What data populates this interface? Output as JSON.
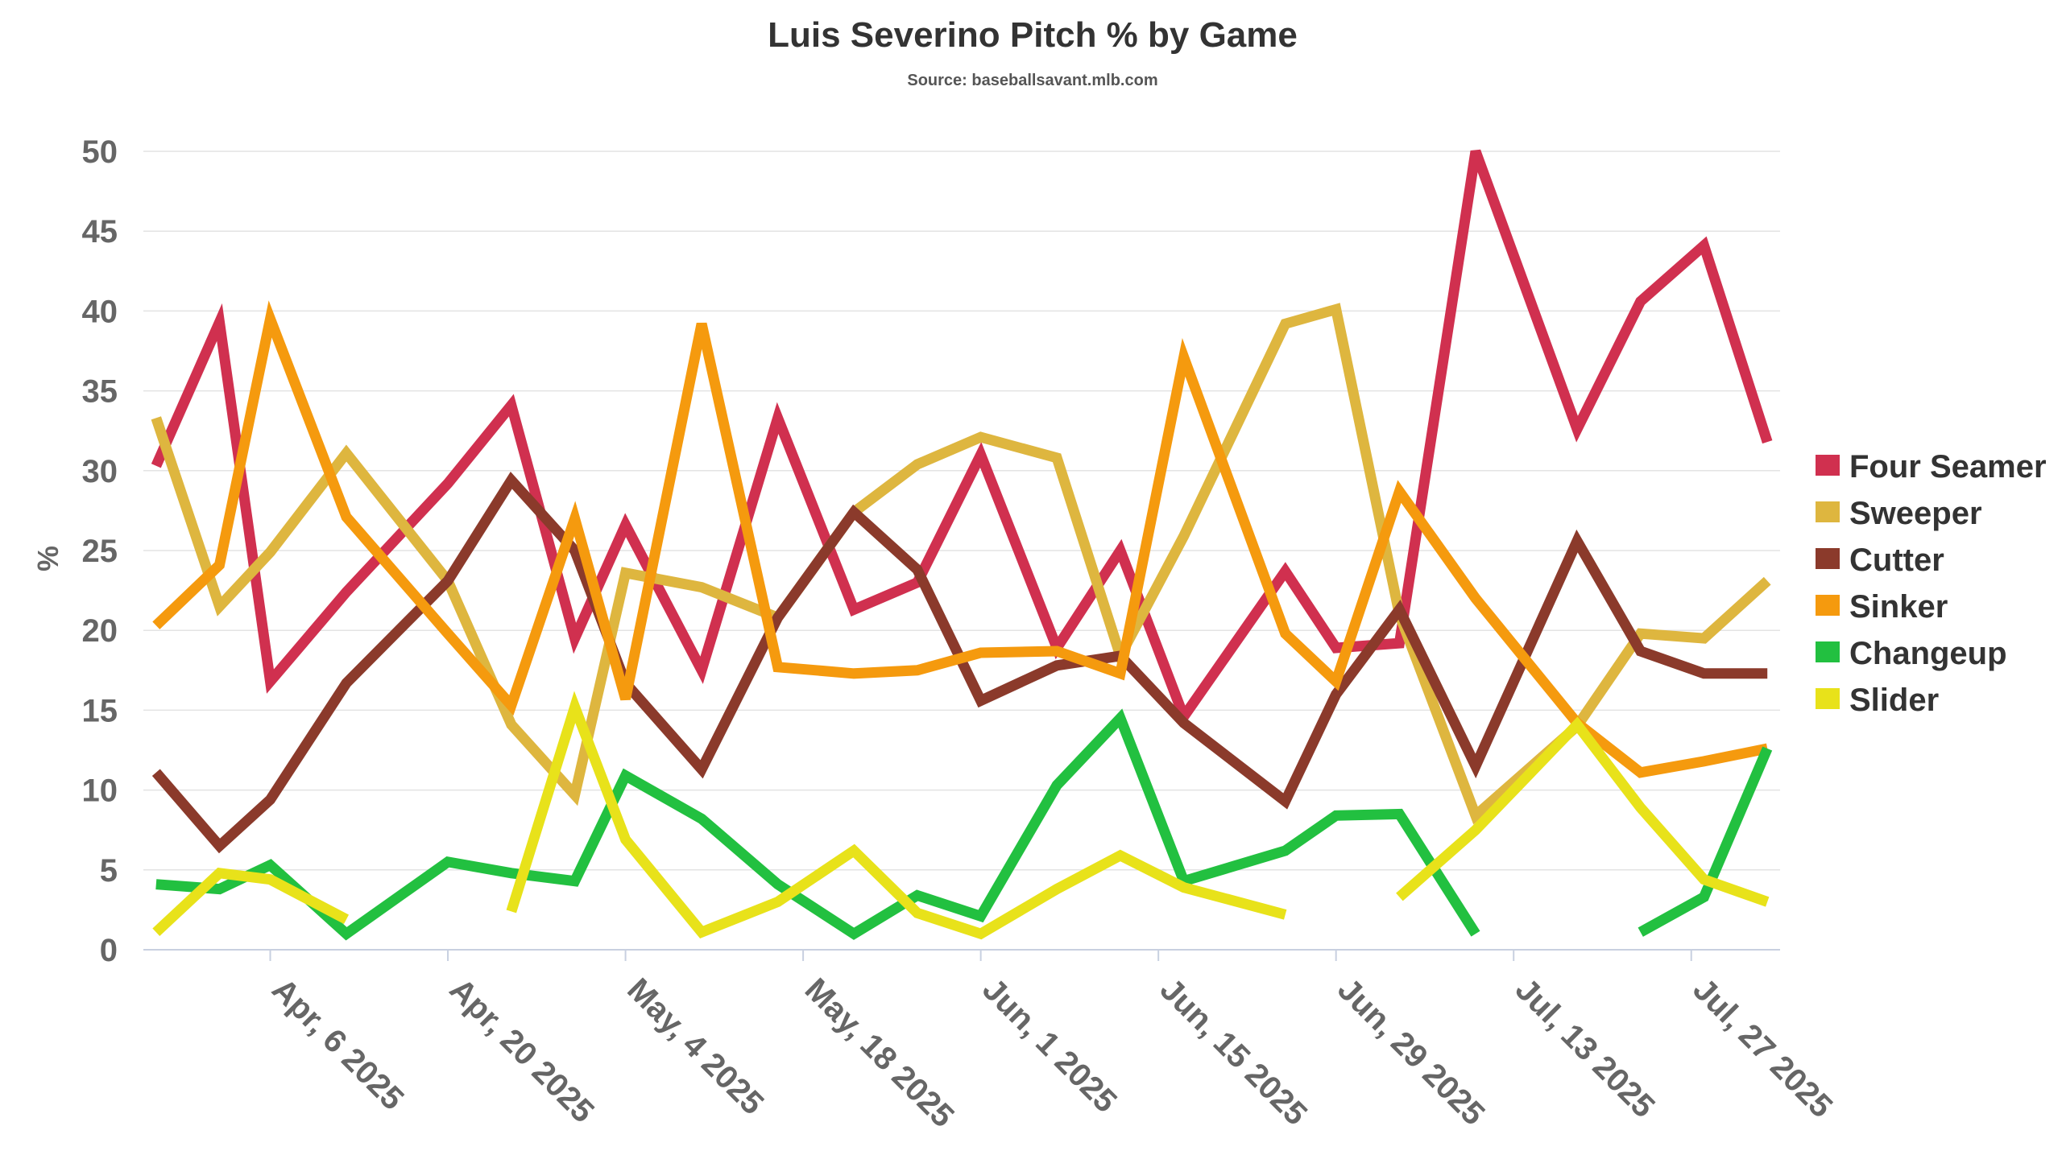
{
  "chart_data": {
    "type": "line",
    "title": "Luis Severino Pitch % by Game",
    "subtitle": "Source: baseballsavant.mlb.com",
    "ylabel": "%",
    "xlabel": "",
    "ylim": [
      0,
      50
    ],
    "yticks": [
      0,
      5,
      10,
      15,
      20,
      25,
      30,
      35,
      40,
      45,
      50
    ],
    "xlim": [
      "2025-03-27",
      "2025-08-03"
    ],
    "xticks": [
      {
        "date": "2025-04-06",
        "label": "Apr, 6 2025"
      },
      {
        "date": "2025-04-20",
        "label": "Apr, 20 2025"
      },
      {
        "date": "2025-05-04",
        "label": "May, 4 2025"
      },
      {
        "date": "2025-05-18",
        "label": "May, 18 2025"
      },
      {
        "date": "2025-06-01",
        "label": "Jun, 1 2025"
      },
      {
        "date": "2025-06-15",
        "label": "Jun, 15 2025"
      },
      {
        "date": "2025-06-29",
        "label": "Jun, 29 2025"
      },
      {
        "date": "2025-07-13",
        "label": "Jul, 13 2025"
      },
      {
        "date": "2025-07-27",
        "label": "Jul, 27 2025"
      }
    ],
    "grid": true,
    "legend_position": "right",
    "x": [
      "2025-03-28",
      "2025-04-02",
      "2025-04-06",
      "2025-04-12",
      "2025-04-20",
      "2025-04-25",
      "2025-04-30",
      "2025-05-04",
      "2025-05-10",
      "2025-05-16",
      "2025-05-22",
      "2025-05-27",
      "2025-06-01",
      "2025-06-07",
      "2025-06-12",
      "2025-06-17",
      "2025-06-25",
      "2025-06-29",
      "2025-07-04",
      "2025-07-10",
      "2025-07-18",
      "2025-07-23",
      "2025-07-28",
      "2025-08-02"
    ],
    "series": [
      {
        "name": "Four Seamer",
        "color": "#d0304f",
        "values": [
          30.3,
          39.3,
          16.8,
          22.4,
          29.2,
          34.1,
          19.5,
          26.6,
          17.5,
          33.3,
          21.3,
          23.0,
          31.0,
          18.9,
          25.0,
          14.6,
          23.7,
          18.9,
          19.2,
          50.0,
          32.6,
          40.6,
          44.1,
          31.8
        ]
      },
      {
        "name": "Sweeper",
        "color": "#deb63f",
        "values": [
          33.3,
          21.5,
          24.9,
          31.1,
          23.1,
          14.1,
          9.7,
          23.6,
          22.7,
          20.8,
          27.4,
          30.4,
          32.1,
          30.8,
          18.4,
          25.9,
          39.2,
          40.1,
          21.0,
          8.4,
          14.0,
          19.8,
          19.5,
          23.1
        ]
      },
      {
        "name": "Cutter",
        "color": "#8b3a2b",
        "values": [
          11.1,
          6.5,
          9.4,
          16.7,
          23.1,
          29.4,
          25.0,
          16.7,
          11.3,
          20.8,
          27.4,
          23.8,
          15.6,
          17.8,
          18.4,
          14.2,
          9.3,
          16.0,
          21.3,
          11.5,
          25.6,
          18.7,
          17.3,
          17.3
        ]
      },
      {
        "name": "Sinker",
        "color": "#f59a0e",
        "values": [
          20.3,
          24.1,
          39.5,
          27.1,
          19.8,
          15.3,
          27.0,
          15.7,
          39.2,
          17.7,
          17.3,
          17.5,
          18.6,
          18.7,
          17.3,
          37.1,
          19.8,
          16.8,
          28.7,
          22.0,
          14.2,
          11.1,
          11.8,
          12.6
        ]
      },
      {
        "name": "Changeup",
        "color": "#22c040",
        "values": [
          4.1,
          3.8,
          5.3,
          1.0,
          5.5,
          4.8,
          4.3,
          10.9,
          8.2,
          4.1,
          1.0,
          3.4,
          2.1,
          10.3,
          14.5,
          4.3,
          6.2,
          8.4,
          8.5,
          1.0,
          null,
          1.1,
          3.3,
          12.6
        ]
      },
      {
        "name": "Slider",
        "color": "#e8e21a",
        "values": [
          1.1,
          4.8,
          4.4,
          1.9,
          null,
          2.4,
          15.2,
          6.9,
          1.1,
          3.0,
          6.2,
          2.3,
          1.0,
          3.8,
          5.9,
          3.9,
          2.2,
          null,
          3.3,
          7.5,
          14.1,
          8.9,
          4.4,
          3.0
        ]
      }
    ]
  }
}
